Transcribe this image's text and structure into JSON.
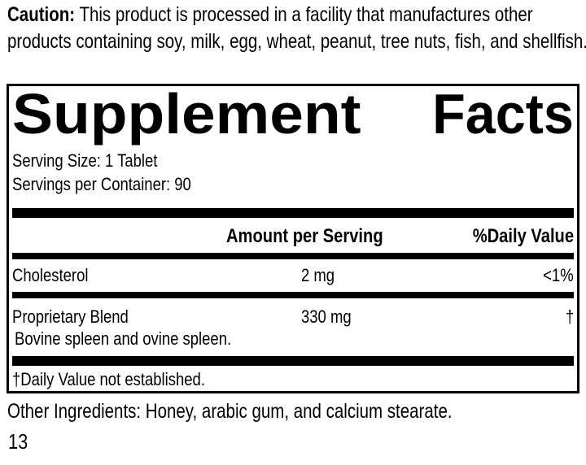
{
  "caution": {
    "label": "Caution:",
    "text": " This product is processed in a facility that manufactures other products containing soy, milk, egg, wheat, peanut, tree nuts, fish, and shellfish."
  },
  "supplement_facts": {
    "title_words": [
      "Supplement",
      "Facts"
    ],
    "serving_size": "Serving Size: 1 Tablet",
    "servings_per_container": "Servings per Container: 90",
    "columns": {
      "amount": "Amount per Serving",
      "daily_value": "%Daily Value"
    },
    "rows": [
      {
        "name": "Cholesterol",
        "amount": "2 mg",
        "daily_value": "<1%"
      },
      {
        "name": "Proprietary Blend",
        "amount": "330 mg",
        "daily_value": "†",
        "note": "Bovine spleen and ovine spleen."
      }
    ],
    "footnote": "†Daily Value not established."
  },
  "other_ingredients": "Other Ingredients: Honey, arabic gum, and calcium stearate.",
  "page_number": "13",
  "colors": {
    "text": "#000000",
    "background": "#ffffff",
    "rule": "#000000"
  }
}
